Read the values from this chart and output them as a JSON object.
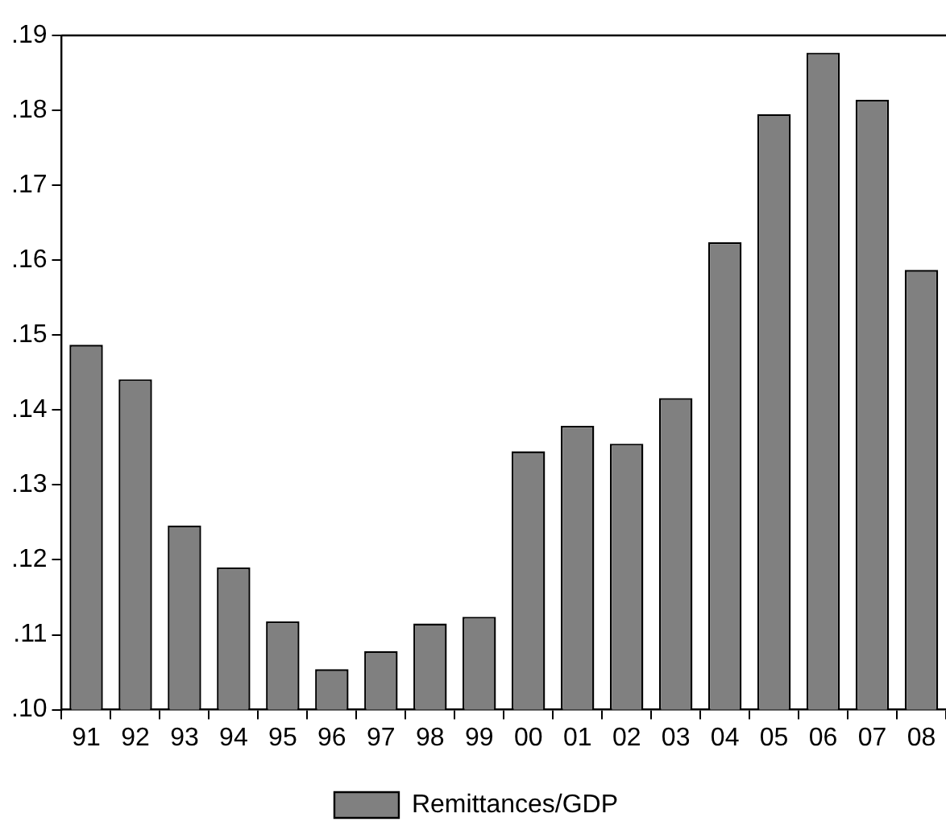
{
  "chart_data": {
    "type": "bar",
    "categories": [
      "91",
      "92",
      "93",
      "94",
      "95",
      "96",
      "97",
      "98",
      "99",
      "00",
      "01",
      "02",
      "03",
      "04",
      "05",
      "06",
      "07",
      "08"
    ],
    "series": [
      {
        "name": "Remittances/GDP",
        "color": "#808080",
        "values": [
          0.1487,
          0.1441,
          0.1246,
          0.119,
          0.1118,
          0.1054,
          0.1078,
          0.1115,
          0.1124,
          0.1345,
          0.1379,
          0.1355,
          0.1416,
          0.1624,
          0.1795,
          0.1877,
          0.1814,
          0.1587
        ]
      }
    ],
    "ylim": [
      0.1,
      0.19
    ],
    "yticks": [
      {
        "value": 0.1,
        "label": ".10"
      },
      {
        "value": 0.11,
        "label": ".11"
      },
      {
        "value": 0.12,
        "label": ".12"
      },
      {
        "value": 0.13,
        "label": ".13"
      },
      {
        "value": 0.14,
        "label": ".14"
      },
      {
        "value": 0.15,
        "label": ".15"
      },
      {
        "value": 0.16,
        "label": ".16"
      },
      {
        "value": 0.17,
        "label": ".17"
      },
      {
        "value": 0.18,
        "label": ".18"
      },
      {
        "value": 0.19,
        "label": ".19"
      }
    ],
    "grid": false,
    "legend": "bottom"
  }
}
